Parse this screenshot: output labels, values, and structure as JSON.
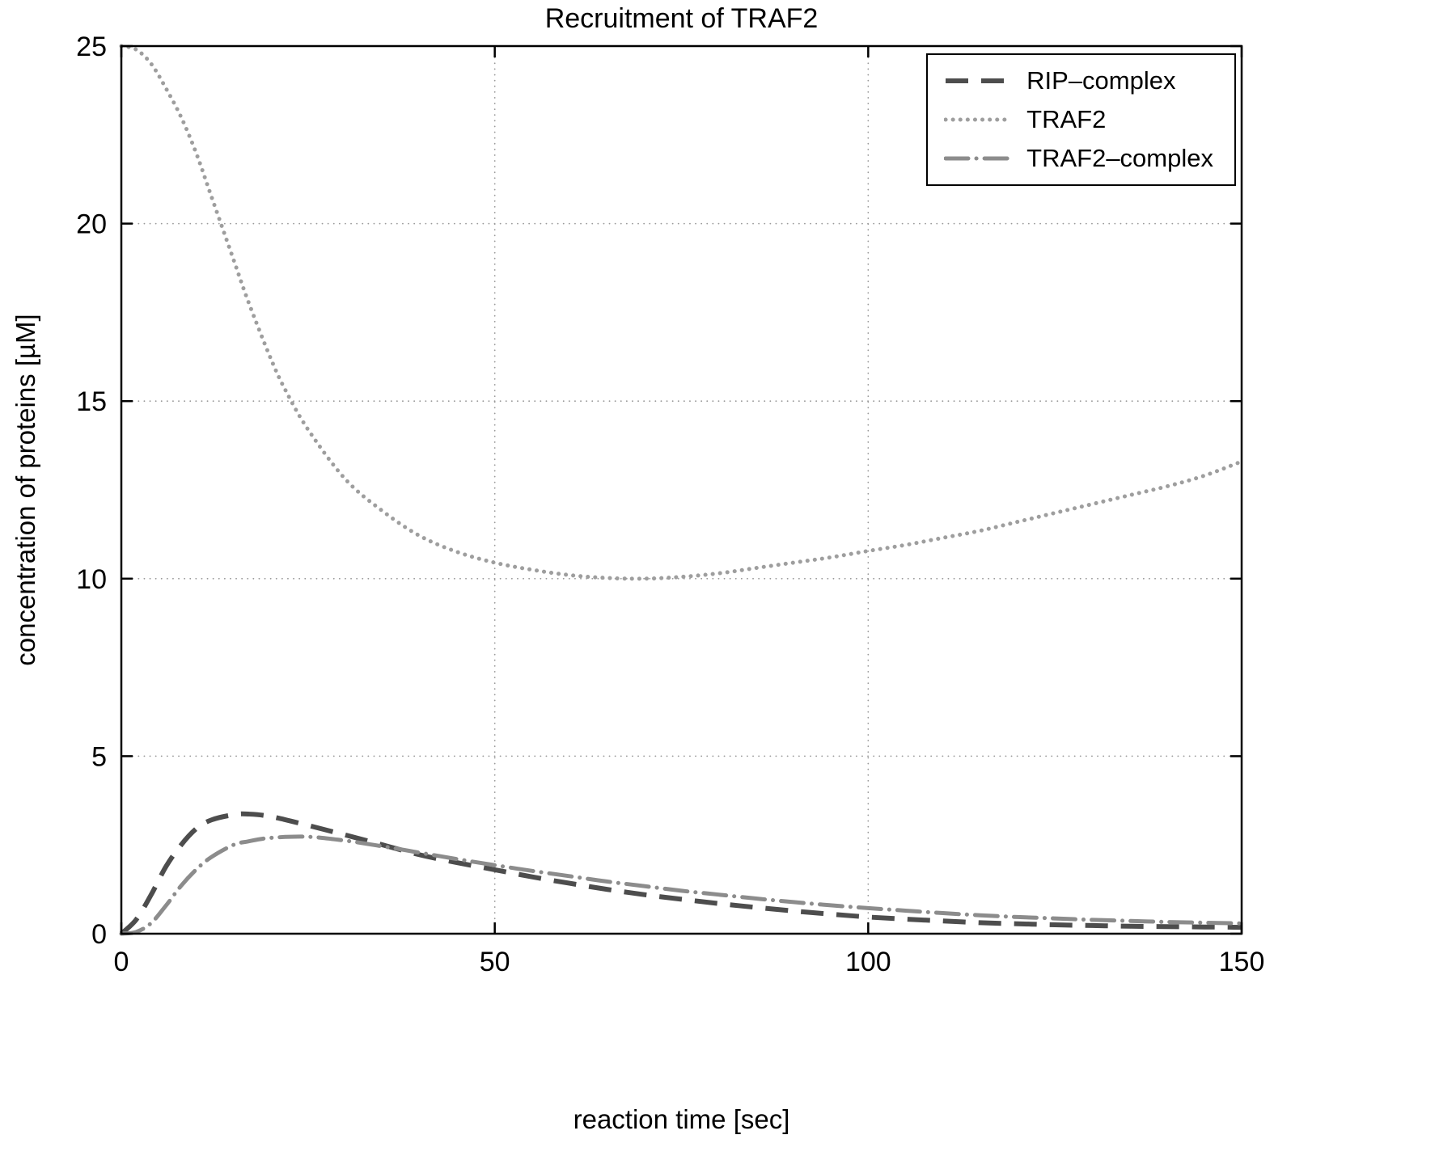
{
  "chart_data": {
    "type": "line",
    "title": "Recruitment of TRAF2",
    "xlabel": "reaction time [sec]",
    "ylabel": "concentration of proteins [µM]",
    "xlim": [
      0,
      150
    ],
    "ylim": [
      0,
      25
    ],
    "xticks": [
      0,
      50,
      100,
      150
    ],
    "yticks": [
      0,
      5,
      10,
      15,
      20,
      25
    ],
    "grid": true,
    "legend_position": "top-right",
    "series": [
      {
        "name": "RIP–complex",
        "line_style": "dashed",
        "color": "#4d4d4d",
        "x": [
          0,
          2,
          4,
          6,
          8,
          10,
          12,
          15,
          17,
          20,
          25,
          30,
          35,
          40,
          45,
          50,
          55,
          60,
          65,
          70,
          75,
          80,
          85,
          90,
          95,
          100,
          105,
          110,
          115,
          120,
          125,
          130,
          135,
          140,
          145,
          150
        ],
        "y": [
          0,
          0.4,
          1.1,
          1.9,
          2.5,
          2.95,
          3.2,
          3.35,
          3.37,
          3.3,
          3.05,
          2.78,
          2.5,
          2.22,
          2.0,
          1.8,
          1.6,
          1.42,
          1.25,
          1.1,
          0.97,
          0.85,
          0.74,
          0.64,
          0.55,
          0.47,
          0.41,
          0.36,
          0.31,
          0.28,
          0.25,
          0.23,
          0.21,
          0.2,
          0.19,
          0.18
        ]
      },
      {
        "name": "TRAF2",
        "line_style": "dotted",
        "color": "#9e9e9e",
        "x": [
          0,
          2,
          4,
          6,
          8,
          10,
          12,
          15,
          17,
          20,
          22,
          25,
          30,
          35,
          40,
          45,
          50,
          55,
          60,
          65,
          70,
          75,
          80,
          85,
          90,
          95,
          100,
          105,
          110,
          115,
          120,
          125,
          130,
          135,
          140,
          145,
          150
        ],
        "y": [
          25,
          24.9,
          24.5,
          23.8,
          23.0,
          22.0,
          20.8,
          19.0,
          17.8,
          16.2,
          15.3,
          14.2,
          12.8,
          11.9,
          11.2,
          10.75,
          10.45,
          10.25,
          10.1,
          10.02,
          10.0,
          10.05,
          10.15,
          10.3,
          10.45,
          10.6,
          10.78,
          10.95,
          11.15,
          11.35,
          11.6,
          11.85,
          12.1,
          12.35,
          12.6,
          12.9,
          13.3
        ]
      },
      {
        "name": "TRAF2–complex",
        "line_style": "dashdot",
        "color": "#8c8c8c",
        "x": [
          0,
          2,
          4,
          6,
          8,
          10,
          12,
          15,
          17,
          20,
          25,
          30,
          35,
          40,
          45,
          50,
          55,
          60,
          65,
          70,
          75,
          80,
          85,
          90,
          95,
          100,
          105,
          110,
          115,
          120,
          125,
          130,
          135,
          140,
          145,
          150
        ],
        "y": [
          0,
          0.05,
          0.3,
          0.8,
          1.35,
          1.8,
          2.15,
          2.5,
          2.6,
          2.7,
          2.73,
          2.62,
          2.46,
          2.28,
          2.1,
          1.93,
          1.77,
          1.62,
          1.47,
          1.34,
          1.21,
          1.1,
          0.99,
          0.89,
          0.8,
          0.72,
          0.65,
          0.58,
          0.52,
          0.47,
          0.43,
          0.39,
          0.36,
          0.33,
          0.31,
          0.29
        ]
      }
    ]
  },
  "colors": {
    "axis": "#000000",
    "grid": "#9a9a9a",
    "background": "#ffffff"
  }
}
